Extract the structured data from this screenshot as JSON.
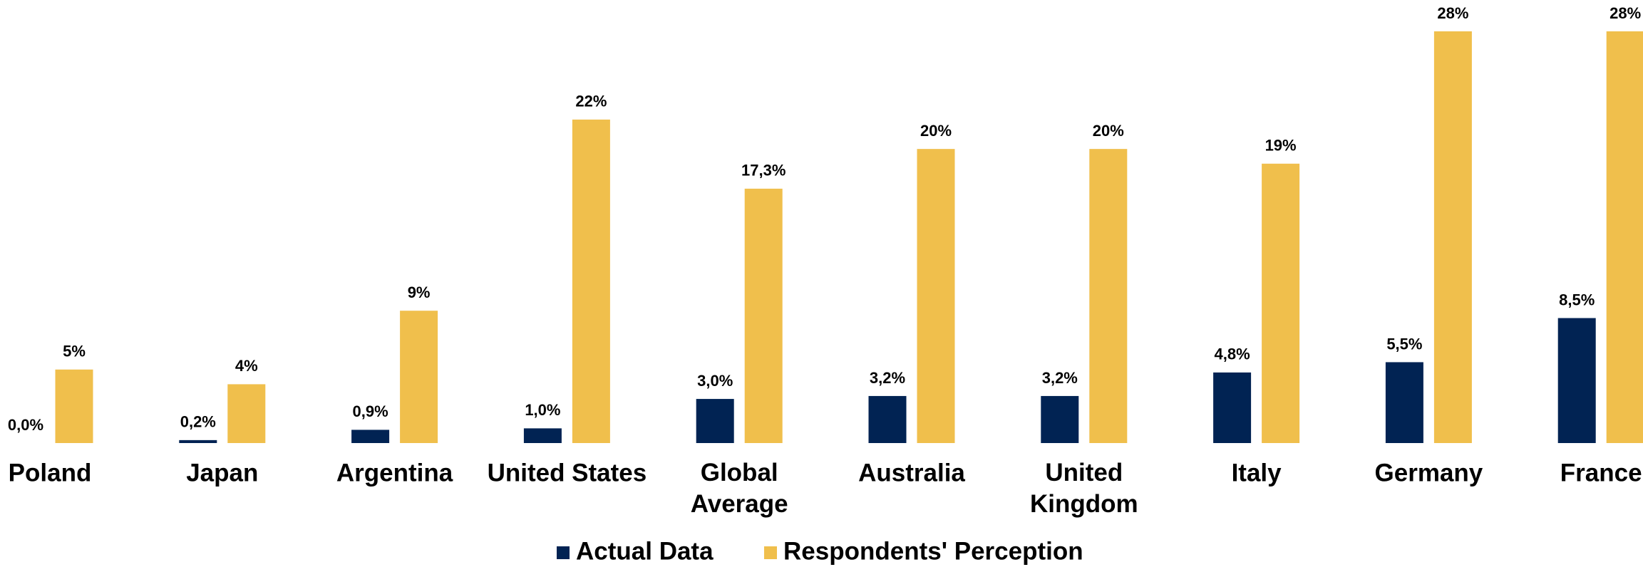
{
  "chart_data": {
    "type": "bar",
    "categories": [
      "Poland",
      "Japan",
      "Argentina",
      "United States",
      "Global\nAverage",
      "Australia",
      "United\nKingdom",
      "Italy",
      "Germany",
      "France"
    ],
    "series": [
      {
        "name": "Actual Data",
        "color": "#012353",
        "values": [
          0.0,
          0.2,
          0.9,
          1.0,
          3.0,
          3.2,
          3.2,
          4.8,
          5.5,
          8.5
        ],
        "value_labels": [
          "0,0%",
          "0,2%",
          "0,9%",
          "1,0%",
          "3,0%",
          "3,2%",
          "3,2%",
          "4,8%",
          "5,5%",
          "8,5%"
        ]
      },
      {
        "name": "Respondents' Perception",
        "color": "#f0bf4c",
        "values": [
          5,
          4,
          9,
          22,
          17.3,
          20,
          20,
          19,
          28,
          28
        ],
        "value_labels": [
          "5%",
          "4%",
          "9%",
          "22%",
          "17,3%",
          "20%",
          "20%",
          "19%",
          "28%",
          "28%"
        ]
      }
    ],
    "legend": "bottom"
  }
}
